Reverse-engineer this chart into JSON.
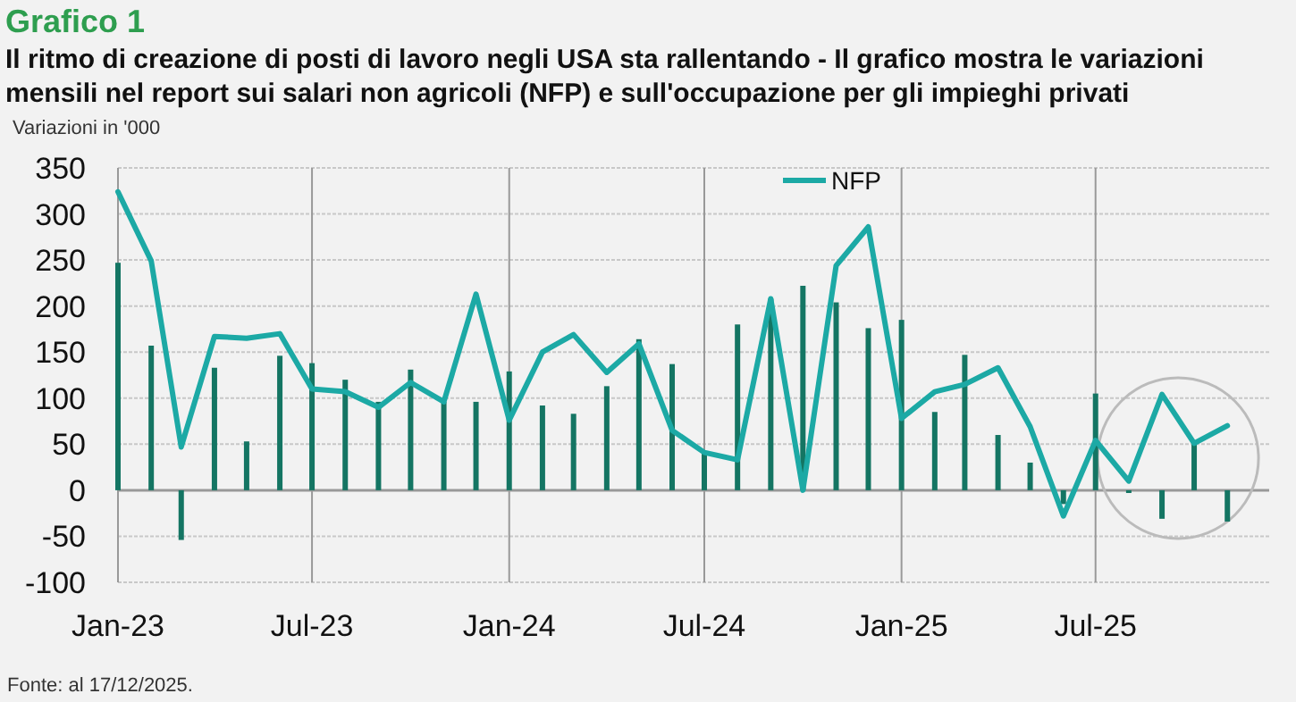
{
  "chart_data": {
    "type": "bar",
    "title": "Grafico 1",
    "subtitle": "Il ritmo di creazione di posti di lavoro negli USA sta rallentando - Il grafico mostra le variazioni mensili nel report sui salari non agricoli (NFP) e sull'occupazione per gli impieghi privati",
    "ylabel": "Variazioni in '000",
    "x": [
      "2023-01",
      "2023-02",
      "2023-03",
      "2023-04",
      "2023-05",
      "2023-06",
      "2023-07",
      "2023-08",
      "2023-09",
      "2023-10",
      "2023-11",
      "2023-12",
      "2024-01",
      "2024-02",
      "2024-03",
      "2024-04",
      "2024-05",
      "2024-06",
      "2024-07",
      "2024-08",
      "2024-09",
      "2024-10",
      "2024-11",
      "2024-12",
      "2025-01",
      "2025-02",
      "2025-03",
      "2025-04",
      "2025-05",
      "2025-06",
      "2025-07",
      "2025-08",
      "2025-09",
      "2025-10",
      "2025-11"
    ],
    "series": [
      {
        "color": "#147563",
        "values": [
          247,
          157,
          -54,
          133,
          53,
          146,
          138,
          120,
          96,
          131,
          96,
          96,
          129,
          92,
          83,
          113,
          164,
          137,
          40,
          180,
          208,
          222,
          204,
          176,
          185,
          85,
          147,
          60,
          30,
          -15,
          105,
          -3,
          -31,
          50,
          -34
        ]
      },
      {
        "type": "line",
        "name": "NFP",
        "color": "#1ca9a5",
        "values": [
          324,
          249,
          47,
          167,
          165,
          170,
          110,
          107,
          90,
          117,
          96,
          213,
          76,
          150,
          169,
          128,
          159,
          65,
          41,
          33,
          208,
          0,
          244,
          286,
          78,
          107,
          115,
          133,
          69,
          -28,
          54,
          10,
          104,
          51,
          70
        ]
      }
    ],
    "xlim": [
      "2023-01-01",
      "2025-12-10"
    ],
    "xticks": [
      {
        "value": "2023-01",
        "label": "Jan-23"
      },
      {
        "value": "2023-07",
        "label": "Jul-23"
      },
      {
        "value": "2024-01",
        "label": "Jan-24"
      },
      {
        "value": "2024-07",
        "label": "Jul-24"
      },
      {
        "value": "2025-01",
        "label": "Jan-25"
      },
      {
        "value": "2025-07",
        "label": "Jul-25"
      }
    ],
    "ylim": [
      -100,
      350
    ],
    "yticks": [
      -100,
      -50,
      0,
      50,
      100,
      150,
      200,
      250,
      300,
      350
    ],
    "grid": true,
    "legend": "top",
    "marker": "none",
    "line_style": "solid",
    "annotations": [
      "Fonte: al 17/12/2025."
    ]
  }
}
